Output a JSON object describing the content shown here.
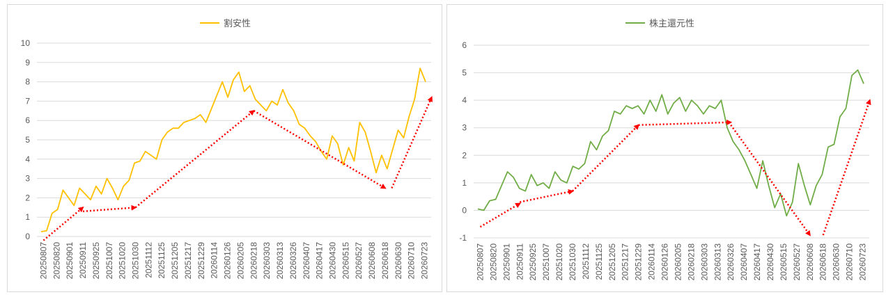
{
  "chart_data": [
    {
      "type": "line",
      "title": "",
      "xlabel": "",
      "ylabel": "",
      "ylim": [
        0,
        10
      ],
      "yticks": [
        "0",
        "1",
        "2",
        "3",
        "4",
        "5",
        "6",
        "7",
        "8",
        "9",
        "10"
      ],
      "grid": "horizontal",
      "legend": "top-center",
      "xtick_labels": [
        "20250807",
        "20250820",
        "20250901",
        "20250911",
        "20250925",
        "20251007",
        "20251020",
        "20251030",
        "20251112",
        "20251125",
        "20251205",
        "20251217",
        "20251229",
        "20260114",
        "20260126",
        "20260205",
        "20260218",
        "20260303",
        "20260313",
        "20260326",
        "20260407",
        "20260417",
        "20260430",
        "20260515",
        "20260527",
        "20260608",
        "20260618",
        "20260630",
        "20260710",
        "20260723"
      ],
      "series": [
        {
          "name": "割安性",
          "color": "#FFC000",
          "values": [
            0.25,
            0.3,
            1.2,
            1.4,
            2.4,
            2.0,
            1.6,
            2.5,
            2.2,
            1.9,
            2.6,
            2.2,
            3.0,
            2.5,
            1.9,
            2.6,
            2.9,
            3.8,
            3.9,
            4.4,
            4.2,
            4.0,
            5.0,
            5.4,
            5.6,
            5.6,
            5.9,
            6.0,
            6.1,
            6.3,
            5.9,
            6.6,
            7.3,
            8.0,
            7.2,
            8.1,
            8.5,
            7.5,
            7.8,
            7.1,
            6.8,
            6.5,
            7.0,
            6.8,
            7.6,
            6.9,
            6.5,
            5.8,
            5.6,
            5.2,
            4.9,
            4.4,
            4.0,
            5.2,
            4.8,
            3.7,
            4.6,
            3.9,
            5.9,
            5.4,
            4.4,
            3.3,
            4.2,
            3.5,
            4.5,
            5.5,
            5.1,
            6.2,
            7.1,
            8.7,
            8.0
          ]
        }
      ],
      "trend_arrows": [
        {
          "from": [
            "20250807",
            -0.2
          ],
          "to": [
            "20250911",
            1.5
          ]
        },
        {
          "from": [
            "20250911",
            1.3
          ],
          "to": [
            "20251030",
            1.5
          ]
        },
        {
          "from": [
            "20251030",
            1.5
          ],
          "to": [
            "20260218",
            6.5
          ]
        },
        {
          "from": [
            "20260218",
            6.5
          ],
          "to": [
            "20260618",
            2.5
          ]
        },
        {
          "from": [
            "20260624",
            2.5
          ],
          "to": [
            "20260730",
            7.2
          ]
        }
      ]
    },
    {
      "type": "line",
      "title": "",
      "xlabel": "",
      "ylabel": "",
      "ylim": [
        -1,
        6
      ],
      "yticks": [
        "-1",
        "0",
        "1",
        "2",
        "3",
        "4",
        "5",
        "6"
      ],
      "grid": "horizontal",
      "legend": "top-center",
      "xtick_labels": [
        "20250807",
        "20250820",
        "20250901",
        "20250911",
        "20250925",
        "20251007",
        "20251020",
        "20251030",
        "20251112",
        "20251125",
        "20251205",
        "20251217",
        "20251229",
        "20260114",
        "20260126",
        "20260205",
        "20260218",
        "20260303",
        "20260313",
        "20260326",
        "20260407",
        "20260417",
        "20260430",
        "20260515",
        "20260527",
        "20260608",
        "20260618",
        "20260630",
        "20260710",
        "20260723"
      ],
      "series": [
        {
          "name": "株主還元性",
          "color": "#70AD47",
          "values": [
            0.05,
            0.0,
            0.35,
            0.4,
            0.9,
            1.4,
            1.2,
            0.8,
            0.7,
            1.3,
            0.9,
            1.0,
            0.8,
            1.4,
            1.1,
            1.0,
            1.6,
            1.5,
            1.7,
            2.5,
            2.2,
            2.7,
            2.9,
            3.6,
            3.5,
            3.8,
            3.7,
            3.8,
            3.5,
            4.0,
            3.6,
            4.2,
            3.5,
            3.9,
            4.1,
            3.6,
            4.0,
            3.8,
            3.5,
            3.8,
            3.7,
            4.0,
            3.0,
            2.5,
            2.2,
            1.8,
            1.3,
            0.8,
            1.8,
            0.9,
            0.1,
            0.6,
            -0.2,
            0.3,
            1.7,
            0.9,
            0.2,
            0.9,
            1.3,
            2.3,
            2.4,
            3.4,
            3.7,
            4.9,
            5.1,
            4.6
          ]
        }
      ],
      "trend_arrows": [
        {
          "from": [
            "20250807",
            -0.6
          ],
          "to": [
            "20250911",
            0.25
          ]
        },
        {
          "from": [
            "20250911",
            0.3
          ],
          "to": [
            "20251030",
            0.7
          ]
        },
        {
          "from": [
            "20251030",
            0.7
          ],
          "to": [
            "20251229",
            3.1
          ]
        },
        {
          "from": [
            "20251229",
            3.1
          ],
          "to": [
            "20260326",
            3.2
          ]
        },
        {
          "from": [
            "20260326",
            3.1
          ],
          "to": [
            "20260608",
            -0.9
          ]
        },
        {
          "from": [
            "20260618",
            -0.9
          ],
          "to": [
            "20260730",
            4.0
          ]
        }
      ]
    }
  ]
}
